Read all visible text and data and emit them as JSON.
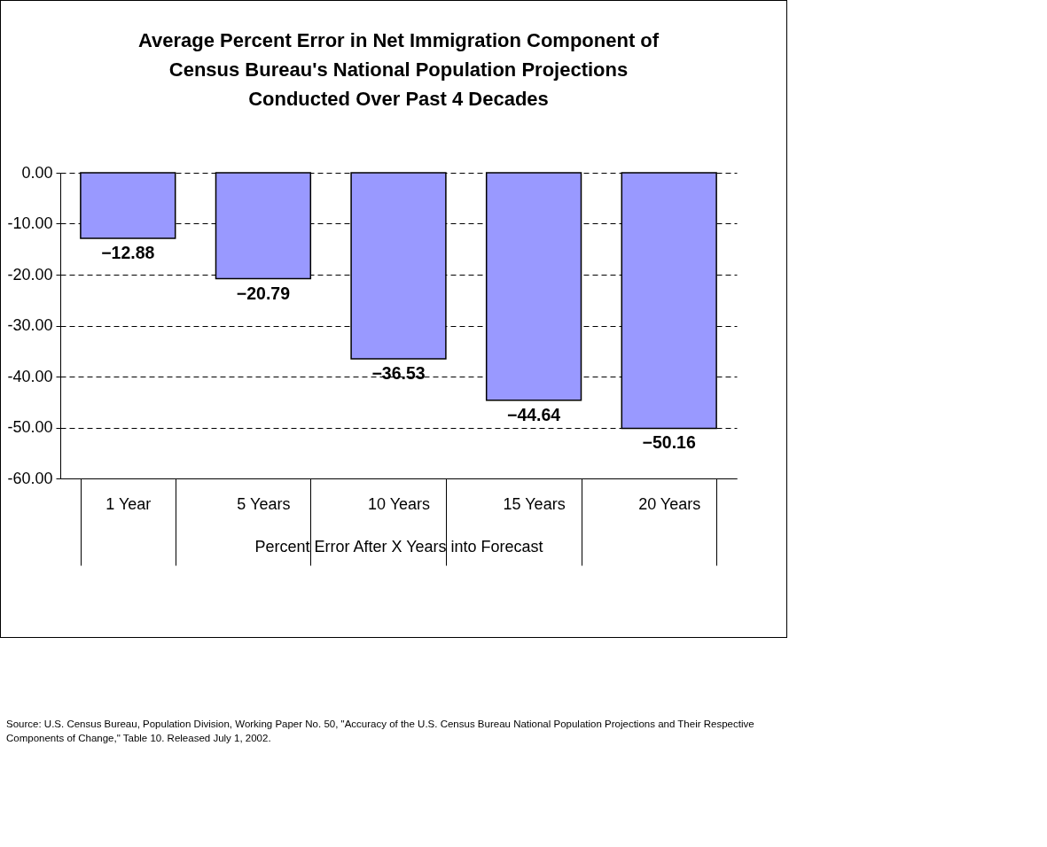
{
  "chart_data": {
    "type": "bar",
    "title": "Average Percent Error in Net Immigration Component of\nCensus Bureau's National Population Projections\nConducted Over Past 4 Decades",
    "xlabel": "Percent Error After X Years into Forecast",
    "categories": [
      "1 Year",
      "5 Years",
      "10 Years",
      "15 Years",
      "20 Years"
    ],
    "values": [
      -12.88,
      -20.79,
      -36.53,
      -44.64,
      -50.16
    ],
    "color": "#9999ff",
    "data_labels": true,
    "ylim": [
      -60,
      0
    ],
    "yticks": [
      {
        "value": 0,
        "label": "0.00"
      },
      {
        "value": -10,
        "label": "-10.00"
      },
      {
        "value": -20,
        "label": "-20.00"
      },
      {
        "value": -30,
        "label": "-30.00"
      },
      {
        "value": -40,
        "label": "-40.00"
      },
      {
        "value": -50,
        "label": "-50.00"
      },
      {
        "value": -60,
        "label": "-60.00"
      }
    ],
    "grid": "y",
    "annotations": [
      "Source: U.S. Census Bureau, Population Division, Working Paper No. 50, \"Accuracy of the U.S. Census Bureau National Population Projections and Their Respective Components of Change,\" Table 10.  Released July 1, 2002."
    ]
  }
}
